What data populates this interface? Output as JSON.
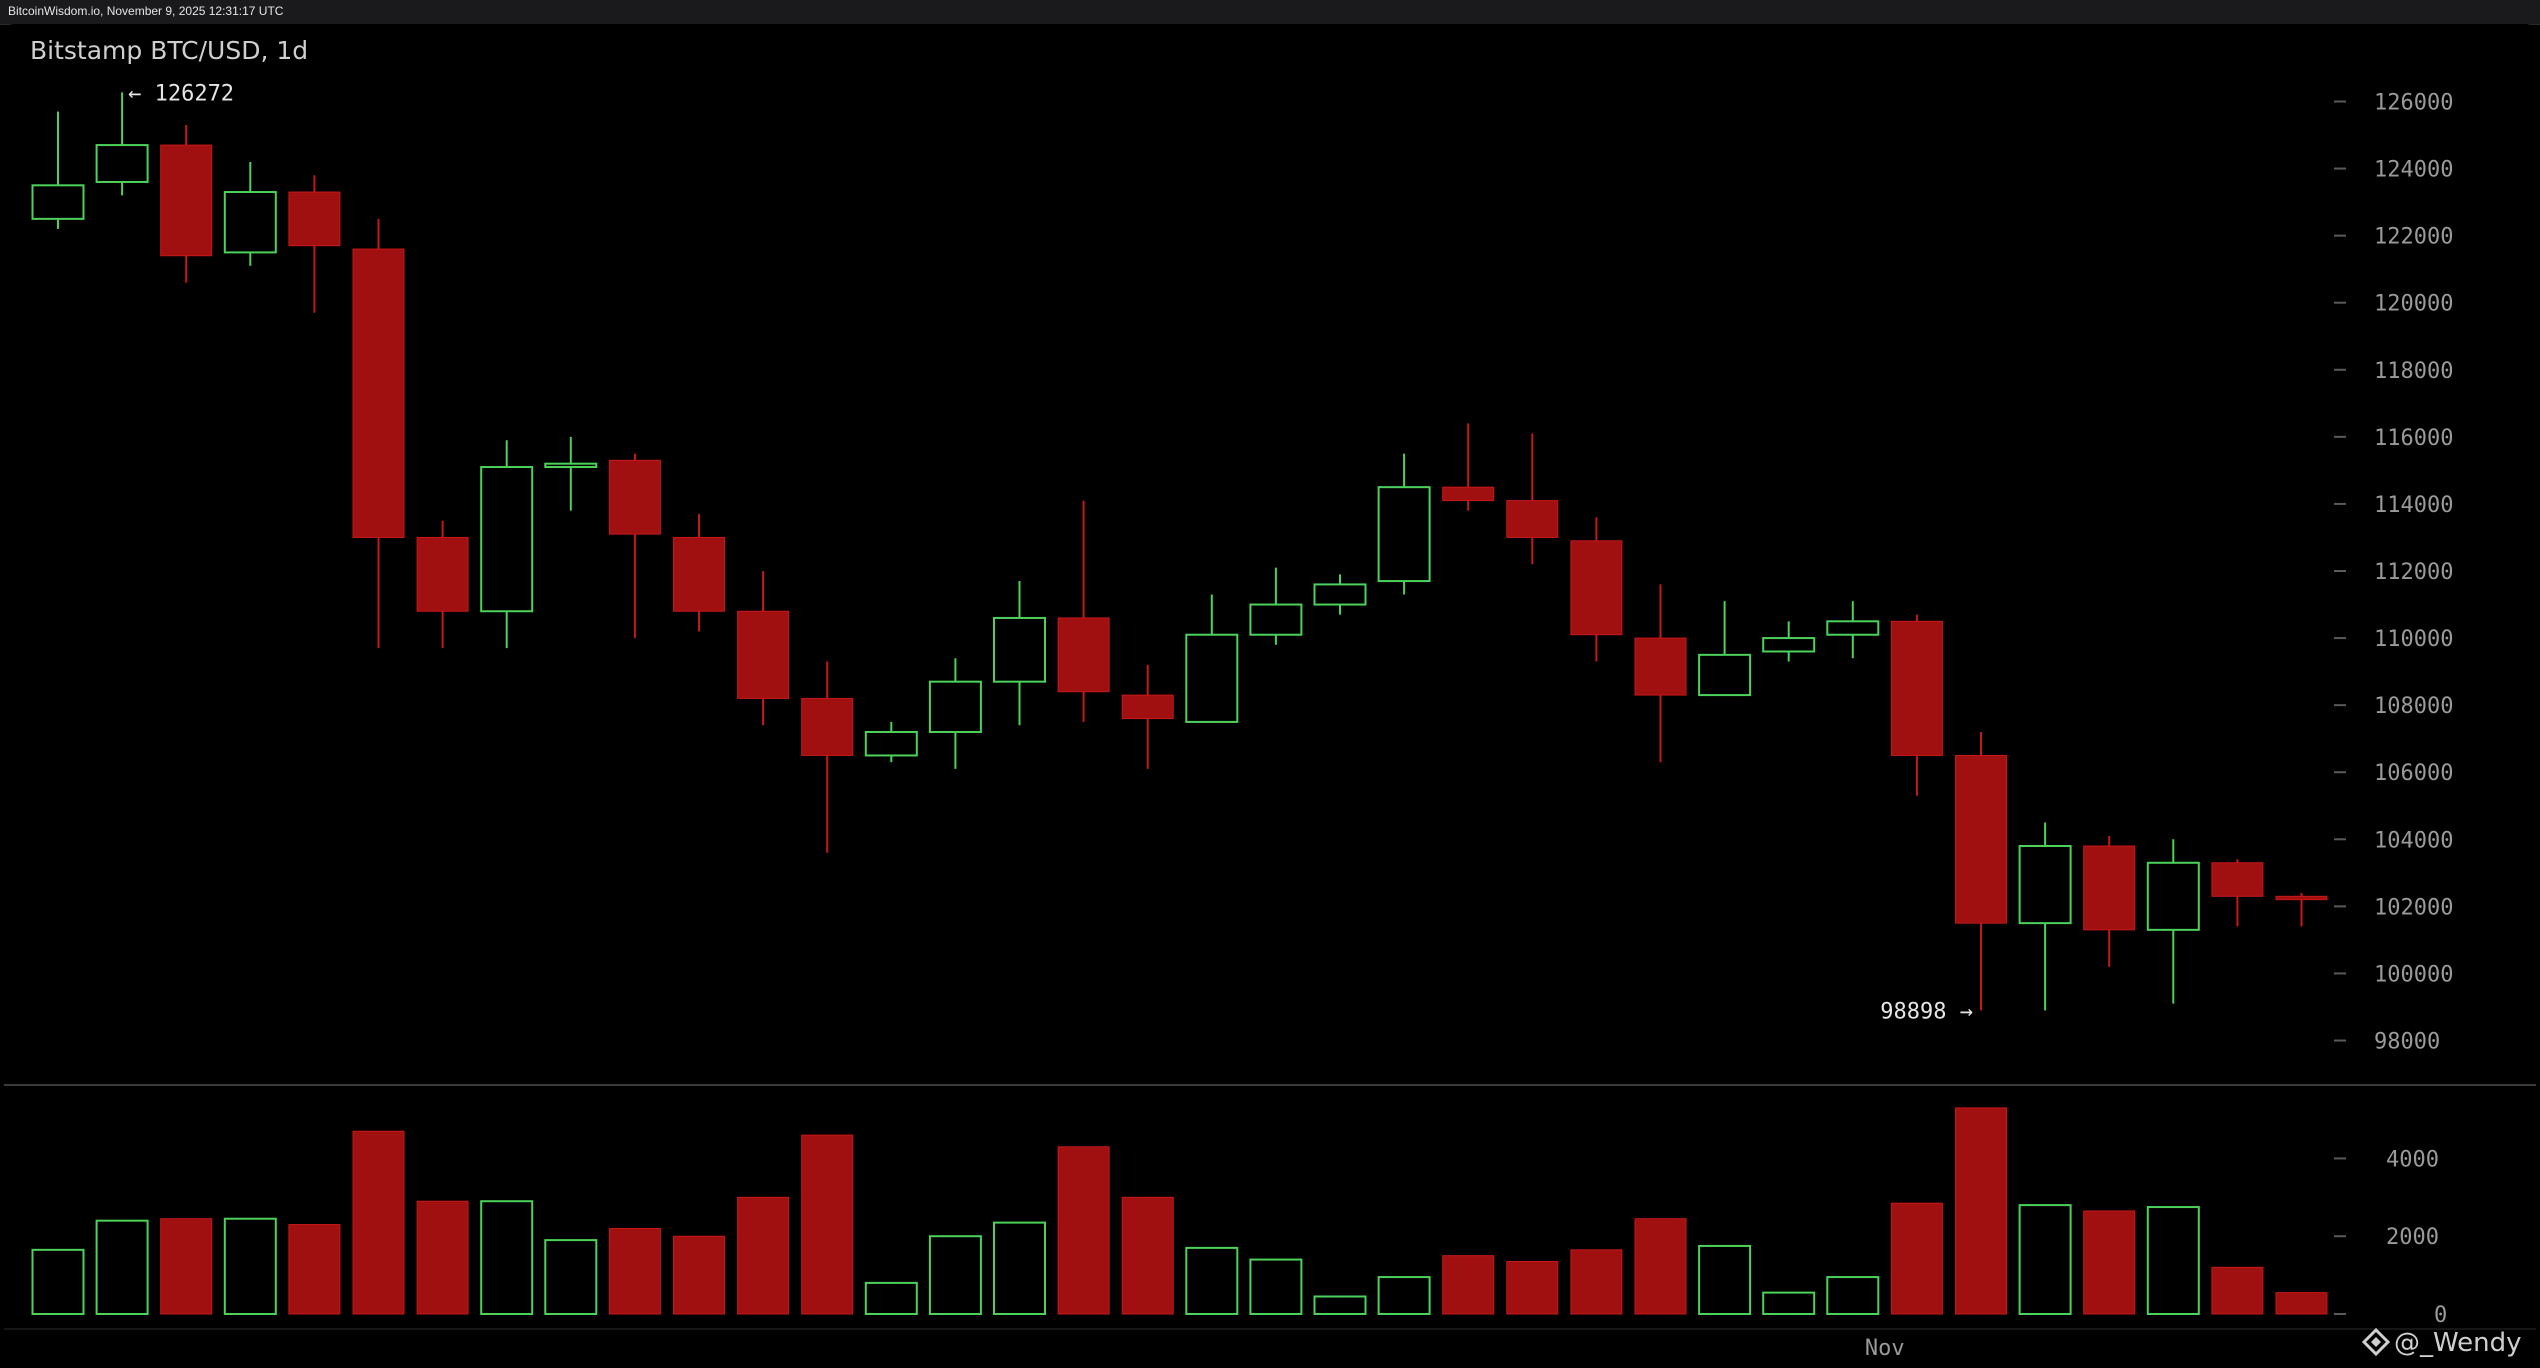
{
  "page": {
    "header_text": "BitcoinWisdom.io, November 9, 2025 12:31:17 UTC",
    "watermark": "@_Wendy",
    "watermark_icon": "diamond-logo-icon"
  },
  "colors": {
    "up": "#4cd25a",
    "down": "#a01010",
    "down_edge": "#c61818",
    "background": "#000000",
    "axis_text": "#9a9a9a",
    "separator": "#3a3a3a"
  },
  "chart_data": {
    "type": "candlestick",
    "title": "Bitstamp BTC/USD, 1d",
    "price_axis": {
      "ticks": [
        98000,
        100000,
        102000,
        104000,
        106000,
        108000,
        110000,
        112000,
        114000,
        116000,
        118000,
        120000,
        122000,
        124000,
        126000
      ],
      "range": [
        97300,
        126700
      ]
    },
    "volume_axis": {
      "ticks": [
        0,
        2000,
        4000
      ],
      "range": [
        0,
        5400
      ]
    },
    "x_tick_labels": [
      {
        "label": "Nov",
        "index": 28
      }
    ],
    "annotations": {
      "high_label": "← 126272",
      "high_value": 126272,
      "high_index": 1,
      "low_label": "98898 →",
      "low_value": 98898,
      "low_index": 30
    },
    "candles": [
      {
        "o": 122500,
        "h": 125700,
        "l": 122200,
        "c": 123500,
        "v": 1650
      },
      {
        "o": 123600,
        "h": 126272,
        "l": 123200,
        "c": 124700,
        "v": 2400
      },
      {
        "o": 124700,
        "h": 125300,
        "l": 120600,
        "c": 121400,
        "v": 2450
      },
      {
        "o": 121500,
        "h": 124200,
        "l": 121100,
        "c": 123300,
        "v": 2450
      },
      {
        "o": 123300,
        "h": 123800,
        "l": 119700,
        "c": 121700,
        "v": 2300
      },
      {
        "o": 121600,
        "h": 122500,
        "l": 109700,
        "c": 113000,
        "v": 4700
      },
      {
        "o": 113000,
        "h": 113500,
        "l": 109700,
        "c": 110800,
        "v": 2900
      },
      {
        "o": 110800,
        "h": 115900,
        "l": 109700,
        "c": 115100,
        "v": 2900
      },
      {
        "o": 115100,
        "h": 116000,
        "l": 113800,
        "c": 115200,
        "v": 1900
      },
      {
        "o": 115300,
        "h": 115500,
        "l": 110000,
        "c": 113100,
        "v": 2200
      },
      {
        "o": 113000,
        "h": 113700,
        "l": 110200,
        "c": 110800,
        "v": 2000
      },
      {
        "o": 110800,
        "h": 112000,
        "l": 107400,
        "c": 108200,
        "v": 3000
      },
      {
        "o": 108200,
        "h": 109300,
        "l": 103600,
        "c": 106500,
        "v": 4600
      },
      {
        "o": 106500,
        "h": 107500,
        "l": 106300,
        "c": 107200,
        "v": 800
      },
      {
        "o": 107200,
        "h": 109400,
        "l": 106100,
        "c": 108700,
        "v": 2000
      },
      {
        "o": 108700,
        "h": 111700,
        "l": 107400,
        "c": 110600,
        "v": 2350
      },
      {
        "o": 110600,
        "h": 114100,
        "l": 107500,
        "c": 108400,
        "v": 4300
      },
      {
        "o": 108300,
        "h": 109200,
        "l": 106100,
        "c": 107600,
        "v": 3000
      },
      {
        "o": 107500,
        "h": 111300,
        "l": 107500,
        "c": 110100,
        "v": 1700
      },
      {
        "o": 110100,
        "h": 112100,
        "l": 109800,
        "c": 111000,
        "v": 1400
      },
      {
        "o": 111000,
        "h": 111900,
        "l": 110700,
        "c": 111600,
        "v": 450
      },
      {
        "o": 111700,
        "h": 115500,
        "l": 111300,
        "c": 114500,
        "v": 950
      },
      {
        "o": 114500,
        "h": 116400,
        "l": 113800,
        "c": 114100,
        "v": 1500
      },
      {
        "o": 114100,
        "h": 116100,
        "l": 112200,
        "c": 113000,
        "v": 1350
      },
      {
        "o": 112900,
        "h": 113600,
        "l": 109300,
        "c": 110100,
        "v": 1650
      },
      {
        "o": 110000,
        "h": 111600,
        "l": 106300,
        "c": 108300,
        "v": 2450
      },
      {
        "o": 108300,
        "h": 111100,
        "l": 108300,
        "c": 109500,
        "v": 1750
      },
      {
        "o": 109600,
        "h": 110500,
        "l": 109300,
        "c": 110000,
        "v": 550
      },
      {
        "o": 110100,
        "h": 111100,
        "l": 109400,
        "c": 110500,
        "v": 950
      },
      {
        "o": 110500,
        "h": 110700,
        "l": 105300,
        "c": 106500,
        "v": 2850
      },
      {
        "o": 106500,
        "h": 107200,
        "l": 98898,
        "c": 101500,
        "v": 5300
      },
      {
        "o": 101500,
        "h": 104500,
        "l": 98900,
        "c": 103800,
        "v": 2800
      },
      {
        "o": 103800,
        "h": 104100,
        "l": 100200,
        "c": 101300,
        "v": 2650
      },
      {
        "o": 101300,
        "h": 104000,
        "l": 99100,
        "c": 103300,
        "v": 2750
      },
      {
        "o": 103300,
        "h": 103400,
        "l": 101400,
        "c": 102300,
        "v": 1200
      },
      {
        "o": 102300,
        "h": 102400,
        "l": 101400,
        "c": 102200,
        "v": 550
      }
    ]
  }
}
